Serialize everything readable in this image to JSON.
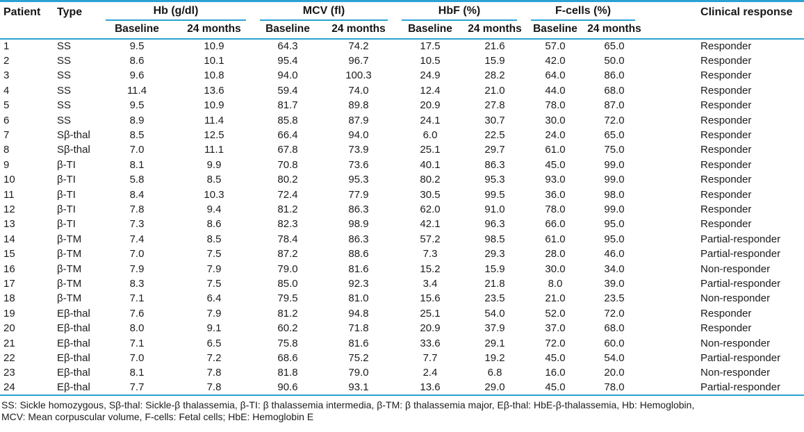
{
  "colors": {
    "rule_blue": "#2aa3d2",
    "text": "#1b1b1b",
    "background": "#ffffff"
  },
  "table": {
    "header": {
      "patient": "Patient",
      "type": "Type",
      "groups": [
        {
          "label": "Hb (g/dl)",
          "sub": [
            "Baseline",
            "24 months"
          ]
        },
        {
          "label": "MCV (fl)",
          "sub": [
            "Baseline",
            "24 months"
          ]
        },
        {
          "label": "HbF (%)",
          "sub": [
            "Baseline",
            "24 months"
          ]
        },
        {
          "label": "F-cells (%)",
          "sub": [
            "Baseline",
            "24 months"
          ]
        }
      ],
      "clinical_response": "Clinical response"
    },
    "rows": [
      [
        "1",
        "SS",
        "9.5",
        "10.9",
        "64.3",
        "74.2",
        "17.5",
        "21.6",
        "57.0",
        "65.0",
        "Responder"
      ],
      [
        "2",
        "SS",
        "8.6",
        "10.1",
        "95.4",
        "96.7",
        "10.5",
        "15.9",
        "42.0",
        "50.0",
        "Responder"
      ],
      [
        "3",
        "SS",
        "9.6",
        "10.8",
        "94.0",
        "100.3",
        "24.9",
        "28.2",
        "64.0",
        "86.0",
        "Responder"
      ],
      [
        "4",
        "SS",
        "11.4",
        "13.6",
        "59.4",
        "74.0",
        "12.4",
        "21.0",
        "44.0",
        "68.0",
        "Responder"
      ],
      [
        "5",
        "SS",
        "9.5",
        "10.9",
        "81.7",
        "89.8",
        "20.9",
        "27.8",
        "78.0",
        "87.0",
        "Responder"
      ],
      [
        "6",
        "SS",
        "8.9",
        "11.4",
        "85.8",
        "87.9",
        "24.1",
        "30.7",
        "30.0",
        "72.0",
        "Responder"
      ],
      [
        "7",
        "Sβ-thal",
        "8.5",
        "12.5",
        "66.4",
        "94.0",
        "6.0",
        "22.5",
        "24.0",
        "65.0",
        "Responder"
      ],
      [
        "8",
        "Sβ-thal",
        "7.0",
        "11.1",
        "67.8",
        "73.9",
        "25.1",
        "29.7",
        "61.0",
        "75.0",
        "Responder"
      ],
      [
        "9",
        "β-TI",
        "8.1",
        "9.9",
        "70.8",
        "73.6",
        "40.1",
        "86.3",
        "45.0",
        "99.0",
        "Responder"
      ],
      [
        "10",
        "β-TI",
        "5.8",
        "8.5",
        "80.2",
        "95.3",
        "80.2",
        "95.3",
        "93.0",
        "99.0",
        "Responder"
      ],
      [
        "11",
        "β-TI",
        "8.4",
        "10.3",
        "72.4",
        "77.9",
        "30.5",
        "99.5",
        "36.0",
        "98.0",
        "Responder"
      ],
      [
        "12",
        "β-TI",
        "7.8",
        "9.4",
        "81.2",
        "86.3",
        "62.0",
        "91.0",
        "78.0",
        "99.0",
        "Responder"
      ],
      [
        "13",
        "β-TI",
        "7.3",
        "8.6",
        "82.3",
        "98.9",
        "42.1",
        "96.3",
        "66.0",
        "95.0",
        "Responder"
      ],
      [
        "14",
        "β-TM",
        "7.4",
        "8.5",
        "78.4",
        "86.3",
        "57.2",
        "98.5",
        "61.0",
        "95.0",
        "Partial-responder"
      ],
      [
        "15",
        "β-TM",
        "7.0",
        "7.5",
        "87.2",
        "88.6",
        "7.3",
        "29.3",
        "28.0",
        "46.0",
        "Partial-responder"
      ],
      [
        "16",
        "β-TM",
        "7.9",
        "7.9",
        "79.0",
        "81.6",
        "15.2",
        "15.9",
        "30.0",
        "34.0",
        "Non-responder"
      ],
      [
        "17",
        "β-TM",
        "8.3",
        "7.5",
        "85.0",
        "92.3",
        "3.4",
        "21.8",
        "8.0",
        "39.0",
        "Partial-responder"
      ],
      [
        "18",
        "β-TM",
        "7.1",
        "6.4",
        "79.5",
        "81.0",
        "15.6",
        "23.5",
        "21.0",
        "23.5",
        "Non-responder"
      ],
      [
        "19",
        "Eβ-thal",
        "7.6",
        "7.9",
        "81.2",
        "94.8",
        "25.1",
        "54.0",
        "52.0",
        "72.0",
        "Responder"
      ],
      [
        "20",
        "Eβ-thal",
        "8.0",
        "9.1",
        "60.2",
        "71.8",
        "20.9",
        "37.9",
        "37.0",
        "68.0",
        "Responder"
      ],
      [
        "21",
        "Eβ-thal",
        "7.1",
        "6.5",
        "75.8",
        "81.6",
        "33.6",
        "29.1",
        "72.0",
        "60.0",
        "Non-responder"
      ],
      [
        "22",
        "Eβ-thal",
        "7.0",
        "7.2",
        "68.6",
        "75.2",
        "7.7",
        "19.2",
        "45.0",
        "54.0",
        "Partial-responder"
      ],
      [
        "23",
        "Eβ-thal",
        "8.1",
        "7.8",
        "81.8",
        "79.0",
        "2.4",
        "6.8",
        "16.0",
        "20.0",
        "Non-responder"
      ],
      [
        "24",
        "Eβ-thal",
        "7.7",
        "7.8",
        "90.6",
        "93.1",
        "13.6",
        "29.0",
        "45.0",
        "78.0",
        "Partial-responder"
      ]
    ]
  },
  "footnote": {
    "line1": "SS: Sickle homozygous, Sβ-thal: Sickle-β thalassemia, β-TI: β thalassemia intermedia, β-TM: β thalassemia major, Eβ-thal: HbE-β-thalassemia, Hb: Hemoglobin,",
    "line2": "MCV: Mean corpuscular volume, F-cells: Fetal cells; HbE: Hemoglobin E"
  }
}
